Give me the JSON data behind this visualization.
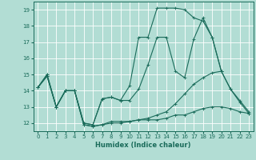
{
  "xlabel": "Humidex (Indice chaleur)",
  "bg_color": "#b2ddd4",
  "grid_color": "#ffffff",
  "line_color": "#1a6b5a",
  "xlim": [
    -0.5,
    23.5
  ],
  "ylim": [
    11.5,
    19.5
  ],
  "xticks": [
    0,
    1,
    2,
    3,
    4,
    5,
    6,
    7,
    8,
    9,
    10,
    11,
    12,
    13,
    14,
    15,
    16,
    17,
    18,
    19,
    20,
    21,
    22,
    23
  ],
  "yticks": [
    12,
    13,
    14,
    15,
    16,
    17,
    18,
    19
  ],
  "lines": [
    {
      "x": [
        0,
        1,
        2,
        3,
        4,
        5,
        6,
        7,
        8,
        9,
        10,
        11,
        12,
        13,
        14,
        15,
        16,
        17,
        18,
        19,
        20,
        21,
        22,
        23
      ],
      "y": [
        14.2,
        15.0,
        13.0,
        14.0,
        14.0,
        12.0,
        11.9,
        13.5,
        13.6,
        13.4,
        14.3,
        17.3,
        17.3,
        19.1,
        19.1,
        19.1,
        19.0,
        18.5,
        18.3,
        17.3,
        15.2,
        null,
        null,
        null
      ]
    },
    {
      "x": [
        0,
        1,
        2,
        3,
        4,
        5,
        6,
        7,
        8,
        9,
        10,
        11,
        12,
        13,
        14,
        15,
        16,
        17,
        18,
        19,
        20,
        21,
        22,
        23
      ],
      "y": [
        14.2,
        15.0,
        13.0,
        14.0,
        14.0,
        12.0,
        11.9,
        13.5,
        13.6,
        13.4,
        13.4,
        14.1,
        15.6,
        17.3,
        17.3,
        15.2,
        14.8,
        17.2,
        18.5,
        17.3,
        15.2,
        14.1,
        13.4,
        12.7
      ]
    },
    {
      "x": [
        0,
        1,
        2,
        3,
        4,
        5,
        6,
        7,
        8,
        9,
        10,
        11,
        12,
        13,
        14,
        15,
        16,
        17,
        18,
        19,
        20,
        21,
        22,
        23
      ],
      "y": [
        14.2,
        14.9,
        13.0,
        14.0,
        14.0,
        11.9,
        11.8,
        11.9,
        12.0,
        12.0,
        12.1,
        12.2,
        12.3,
        12.5,
        12.7,
        13.2,
        13.8,
        14.4,
        14.8,
        15.1,
        15.2,
        14.1,
        13.3,
        12.6
      ]
    },
    {
      "x": [
        0,
        1,
        2,
        3,
        4,
        5,
        6,
        7,
        8,
        9,
        10,
        11,
        12,
        13,
        14,
        15,
        16,
        17,
        18,
        19,
        20,
        21,
        22,
        23
      ],
      "y": [
        14.2,
        14.9,
        13.0,
        14.0,
        14.0,
        11.9,
        11.8,
        11.9,
        12.1,
        12.1,
        12.1,
        12.2,
        12.2,
        12.2,
        12.3,
        12.5,
        12.5,
        12.7,
        12.9,
        13.0,
        13.0,
        12.9,
        12.7,
        12.6
      ]
    }
  ]
}
